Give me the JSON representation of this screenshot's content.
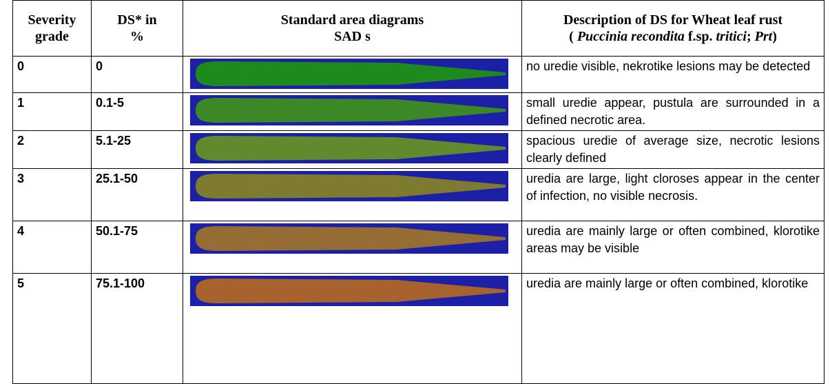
{
  "header": {
    "columns": [
      {
        "line1": "Severity",
        "line2": "grade"
      },
      {
        "line1": "DS* in",
        "line2": "%"
      },
      {
        "line1": "Standard area diagrams",
        "line2": "SAD s"
      },
      {
        "line1": "Description of DS for Wheat leaf rust",
        "line2": [
          "( ",
          "Puccinia recondita",
          " f.sp. ",
          "tritici",
          "; ",
          "Prt",
          ")"
        ]
      }
    ]
  },
  "table": {
    "rows": [
      {
        "grade": "0",
        "ds": "0",
        "description": "no uredie visible, nekrotike lesions may be detected"
      },
      {
        "grade": "1",
        "ds": "0.1-5",
        "description": "small uredie appear, pustula are surrounded in a defined necrotic area."
      },
      {
        "grade": "2",
        "ds": "5.1-25",
        "description": "spacious uredie of average size, necrotic lesions clearly defined"
      },
      {
        "grade": "3",
        "ds": "25.1-50",
        "description": "uredia are large, light cloroses appear in the center of infection, no visible necrosis."
      },
      {
        "grade": "4",
        "ds": "50.1-75",
        "description": "uredia are mainly large or often combined, klorotike areas may be visible"
      },
      {
        "grade": "5",
        "ds": "75.1-100",
        "description": "uredia are mainly large or often combined, klorotike"
      }
    ]
  }
}
